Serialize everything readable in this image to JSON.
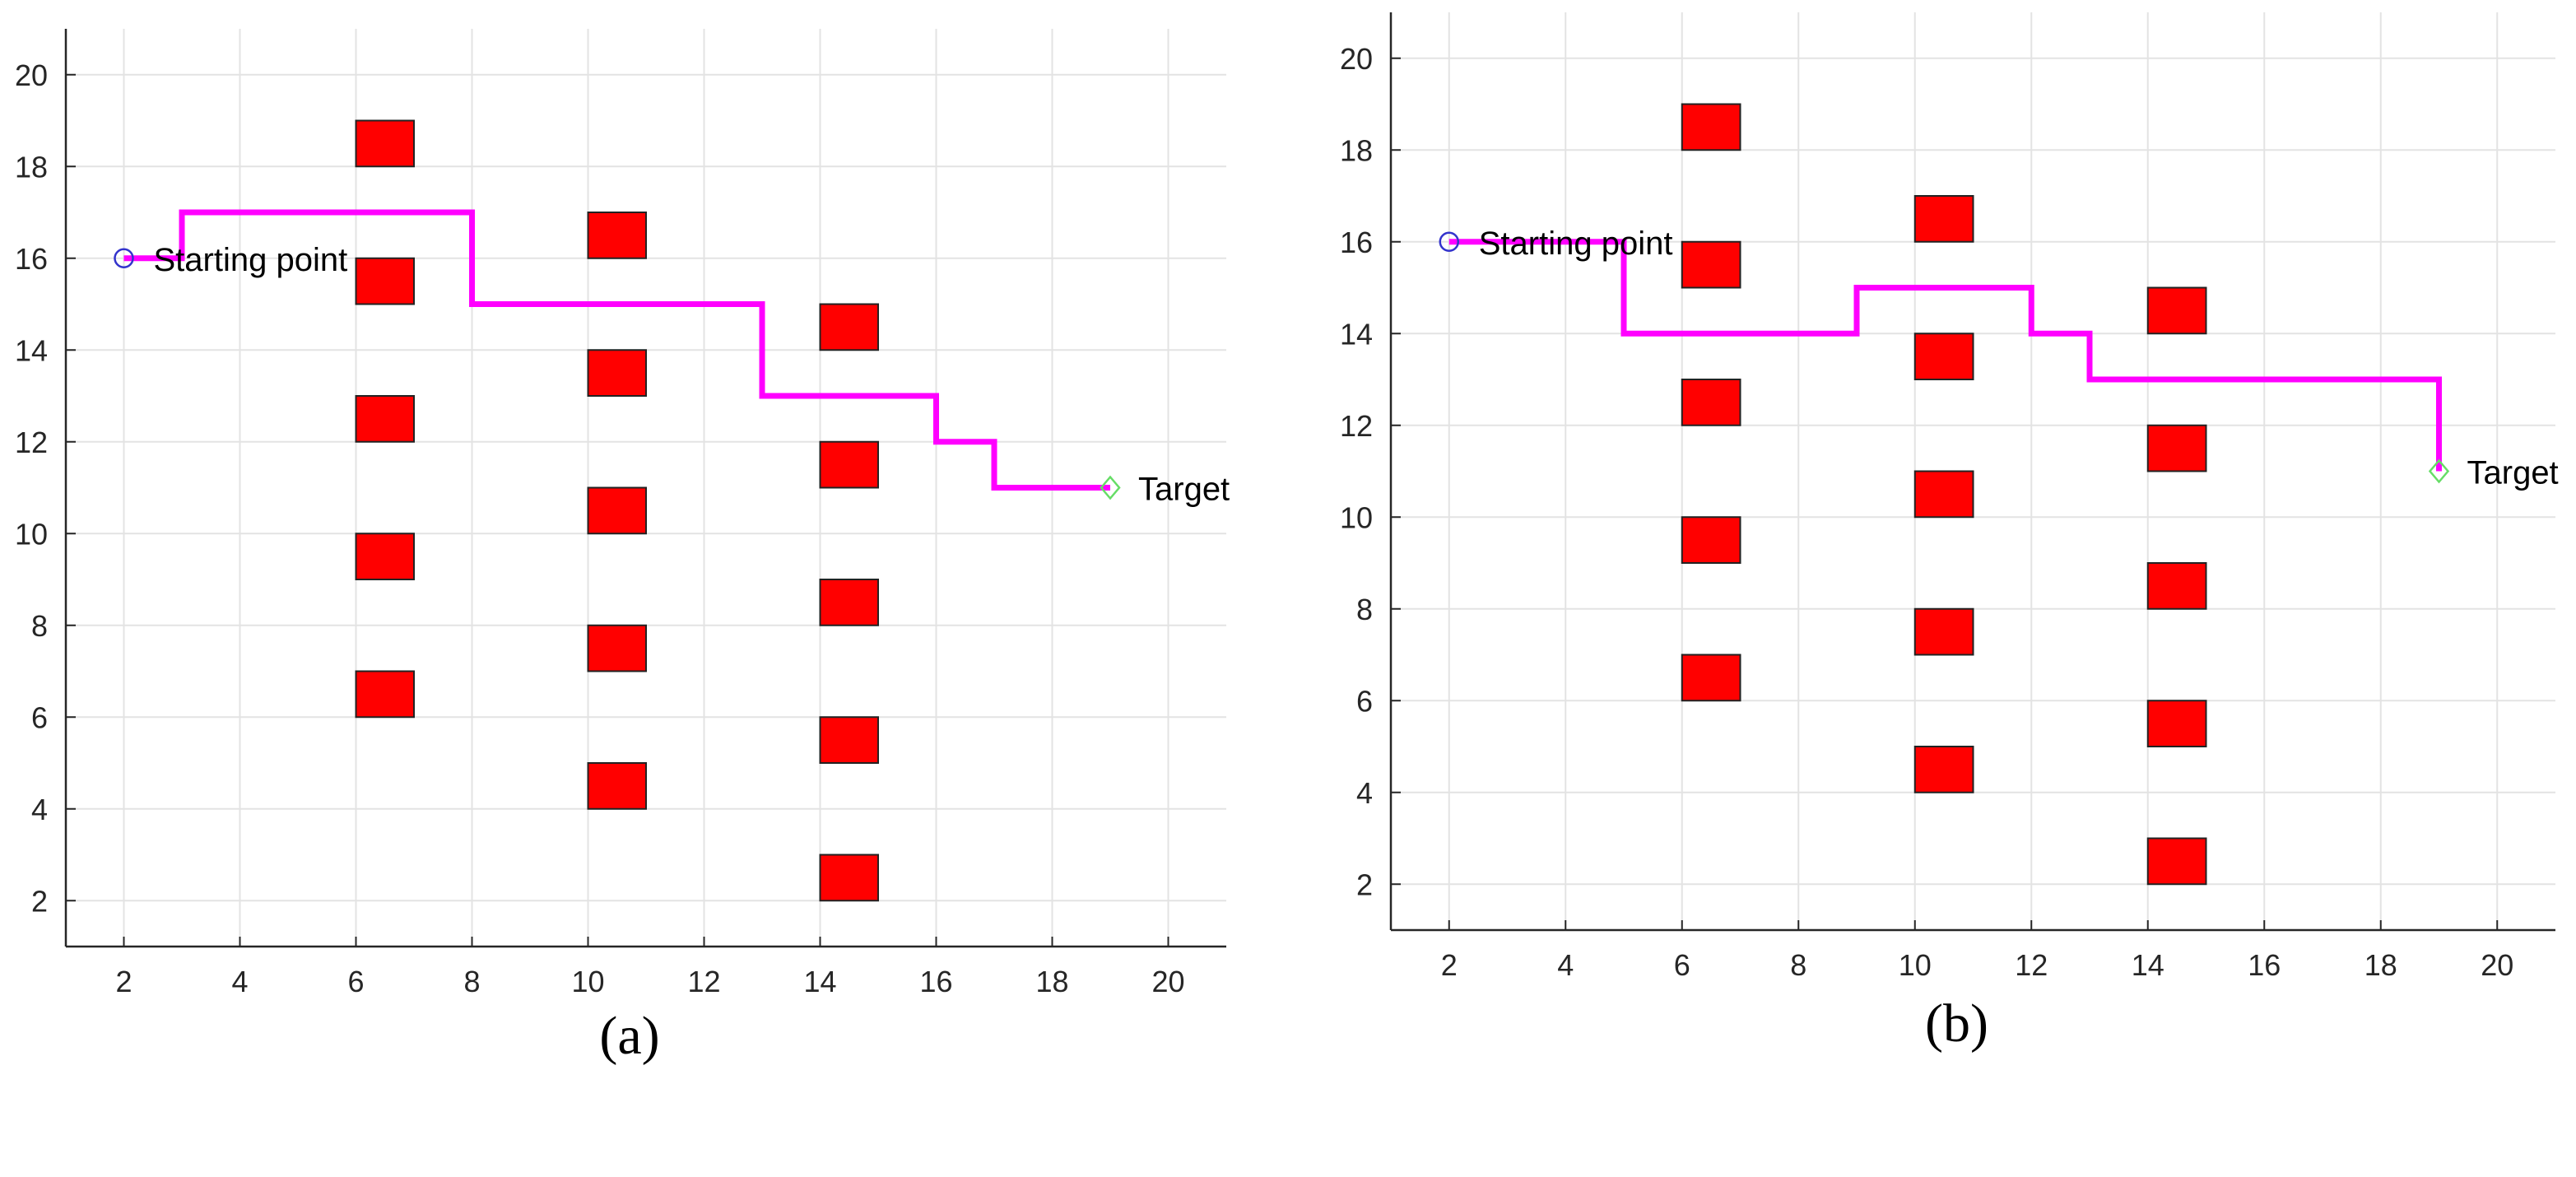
{
  "chart_data": [
    {
      "type": "scatter",
      "caption": "(a)",
      "xlim": [
        1,
        21
      ],
      "ylim": [
        1,
        21
      ],
      "x_ticks": [
        2,
        4,
        6,
        8,
        10,
        12,
        14,
        16,
        18,
        20
      ],
      "y_ticks": [
        2,
        4,
        6,
        8,
        10,
        12,
        14,
        16,
        18,
        20
      ],
      "grid": true,
      "colors": {
        "path": "#ff00ff",
        "obstacle": "#ff0000",
        "start_marker": "#3333cc",
        "target_marker": "#66dd66"
      },
      "start": {
        "x": 2,
        "y": 16,
        "label": "Starting point"
      },
      "target": {
        "x": 19,
        "y": 11,
        "label": "Target"
      },
      "obstacles": [
        {
          "x": 6.5,
          "y": 18.5
        },
        {
          "x": 6.5,
          "y": 15.5
        },
        {
          "x": 6.5,
          "y": 12.5
        },
        {
          "x": 6.5,
          "y": 9.5
        },
        {
          "x": 6.5,
          "y": 6.5
        },
        {
          "x": 10.5,
          "y": 16.5
        },
        {
          "x": 10.5,
          "y": 13.5
        },
        {
          "x": 10.5,
          "y": 10.5
        },
        {
          "x": 10.5,
          "y": 7.5
        },
        {
          "x": 10.5,
          "y": 4.5
        },
        {
          "x": 14.5,
          "y": 14.5
        },
        {
          "x": 14.5,
          "y": 11.5
        },
        {
          "x": 14.5,
          "y": 8.5
        },
        {
          "x": 14.5,
          "y": 5.5
        },
        {
          "x": 14.5,
          "y": 2.5
        }
      ],
      "path": [
        [
          2,
          16
        ],
        [
          3,
          16
        ],
        [
          3,
          17
        ],
        [
          8,
          17
        ],
        [
          8,
          15
        ],
        [
          13,
          15
        ],
        [
          13,
          13
        ],
        [
          16,
          13
        ],
        [
          16,
          12
        ],
        [
          17,
          12
        ],
        [
          17,
          11
        ],
        [
          19,
          11
        ]
      ]
    },
    {
      "type": "scatter",
      "caption": "(b)",
      "xlim": [
        1,
        21
      ],
      "ylim": [
        1,
        21
      ],
      "x_ticks": [
        2,
        4,
        6,
        8,
        10,
        12,
        14,
        16,
        18,
        20
      ],
      "y_ticks": [
        2,
        4,
        6,
        8,
        10,
        12,
        14,
        16,
        18,
        20
      ],
      "grid": true,
      "colors": {
        "path": "#ff00ff",
        "obstacle": "#ff0000",
        "start_marker": "#3333cc",
        "target_marker": "#66dd66"
      },
      "start": {
        "x": 2,
        "y": 16,
        "label": "Starting point"
      },
      "target": {
        "x": 19,
        "y": 11,
        "label": "Target"
      },
      "obstacles": [
        {
          "x": 6.5,
          "y": 18.5
        },
        {
          "x": 6.5,
          "y": 15.5
        },
        {
          "x": 6.5,
          "y": 12.5
        },
        {
          "x": 6.5,
          "y": 9.5
        },
        {
          "x": 6.5,
          "y": 6.5
        },
        {
          "x": 10.5,
          "y": 16.5
        },
        {
          "x": 10.5,
          "y": 13.5
        },
        {
          "x": 10.5,
          "y": 10.5
        },
        {
          "x": 10.5,
          "y": 7.5
        },
        {
          "x": 10.5,
          "y": 4.5
        },
        {
          "x": 14.5,
          "y": 14.5
        },
        {
          "x": 14.5,
          "y": 11.5
        },
        {
          "x": 14.5,
          "y": 8.5
        },
        {
          "x": 14.5,
          "y": 5.5
        },
        {
          "x": 14.5,
          "y": 2.5
        }
      ],
      "path": [
        [
          2,
          16
        ],
        [
          5,
          16
        ],
        [
          5,
          14
        ],
        [
          9,
          14
        ],
        [
          9,
          15
        ],
        [
          12,
          15
        ],
        [
          12,
          14
        ],
        [
          13,
          14
        ],
        [
          13,
          13
        ],
        [
          19,
          13
        ],
        [
          19,
          11
        ]
      ]
    }
  ]
}
